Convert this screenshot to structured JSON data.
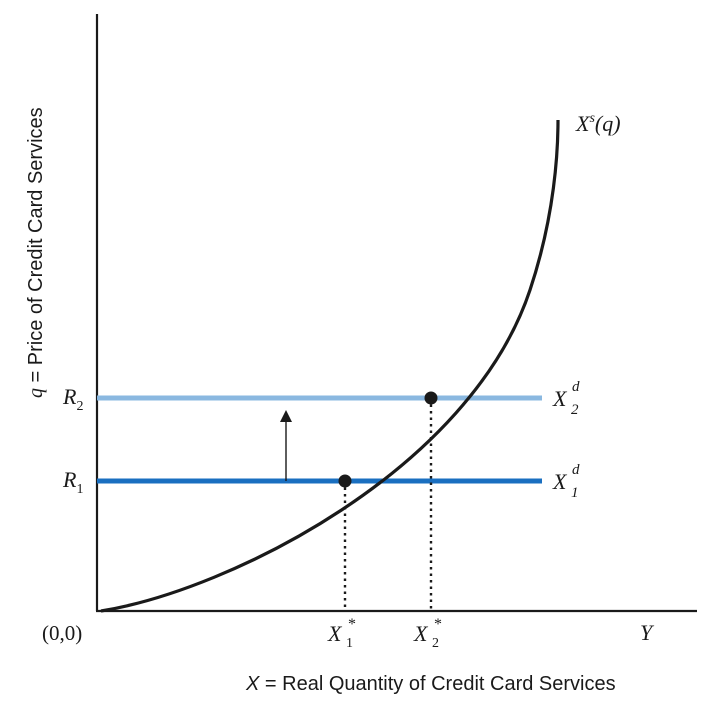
{
  "diagram": {
    "y_axis_label_var": "q",
    "y_axis_label_rest": " = Price of Credit Card Services",
    "x_axis_label_var": "X",
    "x_axis_label_rest": " = Real Quantity of Credit Card Services",
    "origin_label": "(0,0)",
    "x_end_label": "Y",
    "supply_curve_label": "X",
    "supply_curve_label_sup": "s",
    "supply_curve_label_arg": "(q)",
    "r1_label": "R",
    "r1_sub": "1",
    "r2_label": "R",
    "r2_sub": "2",
    "demand1_label": "X",
    "demand1_sup": "d",
    "demand1_sub": "1",
    "demand2_label": "X",
    "demand2_sup": "d",
    "demand2_sub": "2",
    "eq1_label": "X",
    "eq1_sup": "*",
    "eq1_sub": "1",
    "eq2_label": "X",
    "eq2_sup": "*",
    "eq2_sub": "2"
  },
  "colors": {
    "axis": "#1a1a1a",
    "supply_curve": "#1a1a1a",
    "demand1_line": "#1a6fc0",
    "demand2_line": "#8ab8e0",
    "equilibrium_point": "#1a1a1a"
  }
}
